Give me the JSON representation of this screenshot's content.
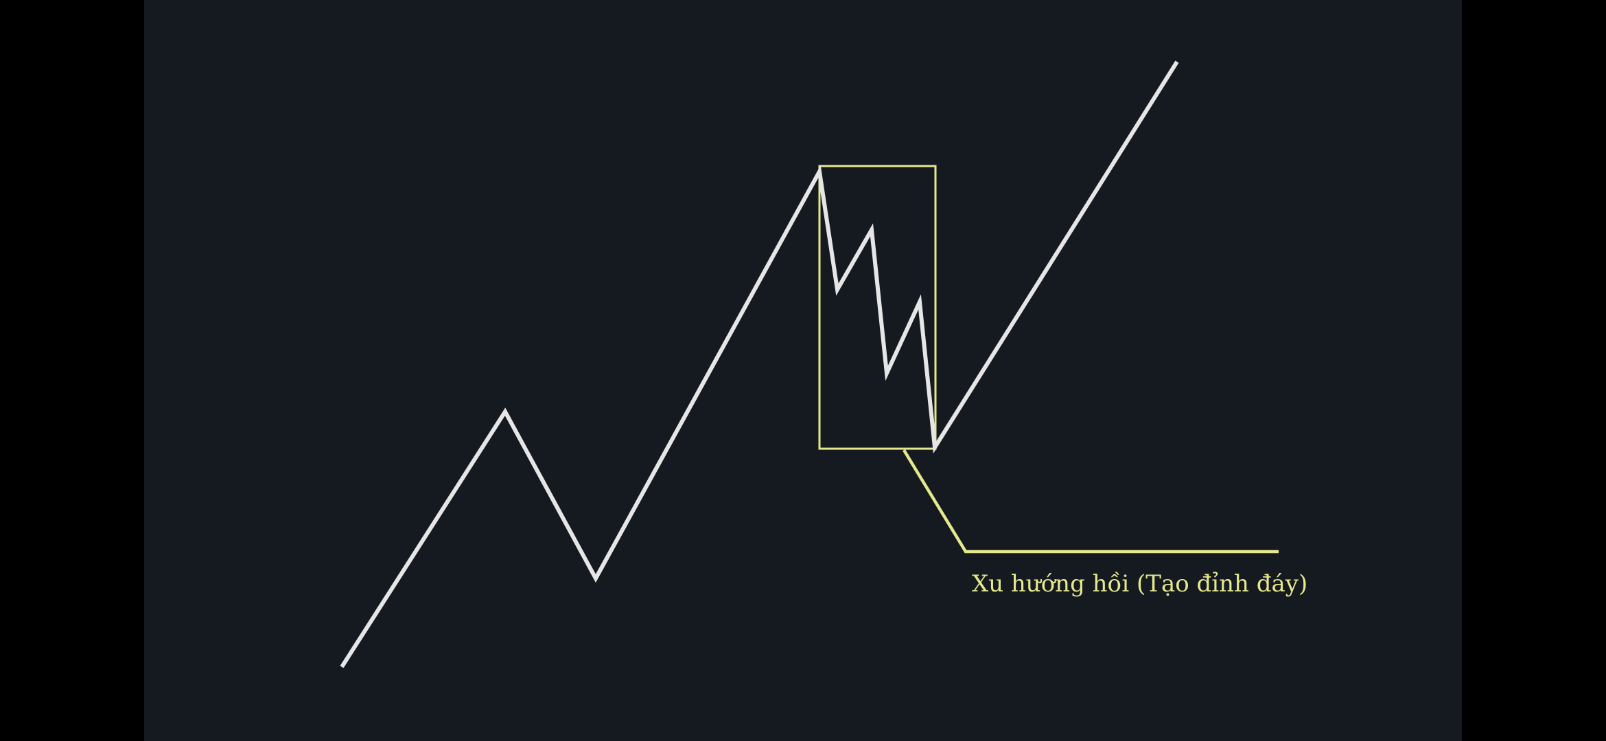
{
  "colors": {
    "screen_background": "#000000",
    "slide_background": "#151a21",
    "trend_line": "#e6e6e6",
    "highlight": "#e6e88e"
  },
  "annotation": {
    "text": "Xu hướng hồi (Tạo đỉnh đáy)"
  }
}
